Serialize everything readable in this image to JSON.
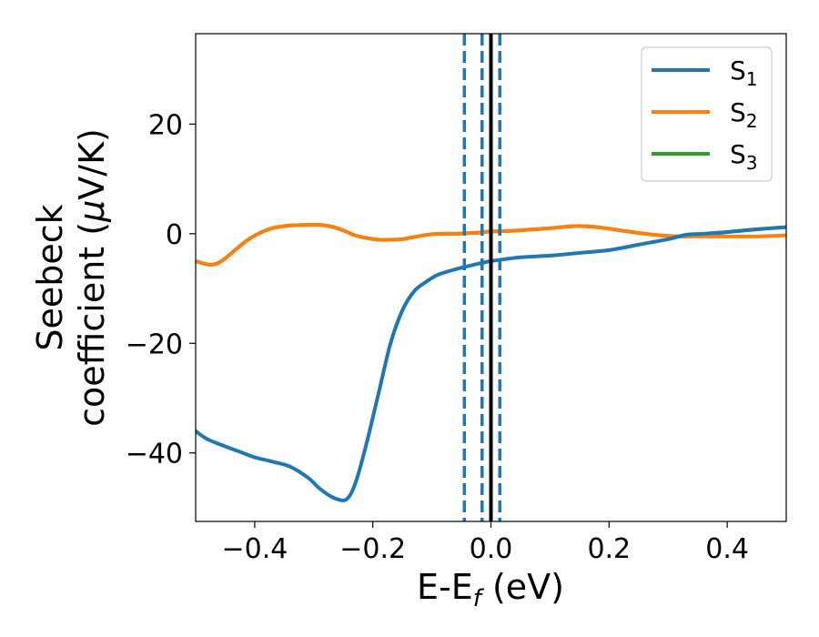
{
  "chart_data": {
    "type": "line",
    "xlabel": "E-E",
    "xlabel_sub": "f",
    "xlabel_unit": " (eV)",
    "ylabel_line1": "Seebeck",
    "ylabel_line2_prefix": "coefficient  (",
    "ylabel_mu": "μ",
    "ylabel_line2_suffix": "V/K)",
    "xlim": [
      -0.5,
      0.5
    ],
    "ylim": [
      -52.5,
      36.5
    ],
    "xticks": [
      -0.4,
      -0.2,
      0.0,
      0.2,
      0.4
    ],
    "xtick_labels": [
      "−0.4",
      "−0.2",
      "0.0",
      "0.2",
      "0.4"
    ],
    "yticks": [
      -40,
      -20,
      0,
      20
    ],
    "ytick_labels": [
      "−40",
      "−20",
      "0",
      "20"
    ],
    "grid": false,
    "legend_position": "top-right",
    "series": [
      {
        "name": "S",
        "subscript": "1",
        "color": "#1f77b4",
        "x": [
          -0.5,
          -0.48,
          -0.45,
          -0.42,
          -0.4,
          -0.37,
          -0.34,
          -0.31,
          -0.29,
          -0.27,
          -0.255,
          -0.245,
          -0.235,
          -0.225,
          -0.21,
          -0.19,
          -0.17,
          -0.15,
          -0.13,
          -0.11,
          -0.09,
          -0.07,
          -0.05,
          -0.03,
          -0.01,
          0.0,
          0.02,
          0.05,
          0.1,
          0.15,
          0.2,
          0.25,
          0.3,
          0.33,
          0.36,
          0.4,
          0.45,
          0.5
        ],
        "y": [
          -36,
          -37.5,
          -38.8,
          -40,
          -40.8,
          -41.6,
          -42.5,
          -44.5,
          -46.5,
          -48,
          -48.6,
          -48.5,
          -47,
          -44,
          -38,
          -29,
          -20,
          -14,
          -10.5,
          -8.8,
          -7.5,
          -6.8,
          -6.2,
          -5.7,
          -5.2,
          -5.0,
          -4.7,
          -4.3,
          -4.0,
          -3.5,
          -3.0,
          -2.0,
          -1.0,
          -0.2,
          0.0,
          0.3,
          0.8,
          1.2
        ]
      },
      {
        "name": "S",
        "subscript": "2",
        "color": "#ff7f0e",
        "x": [
          -0.5,
          -0.48,
          -0.465,
          -0.45,
          -0.43,
          -0.41,
          -0.39,
          -0.37,
          -0.34,
          -0.31,
          -0.29,
          -0.27,
          -0.25,
          -0.23,
          -0.21,
          -0.19,
          -0.17,
          -0.15,
          -0.13,
          -0.1,
          -0.08,
          -0.06,
          -0.04,
          -0.02,
          0.0,
          0.03,
          0.06,
          0.1,
          0.13,
          0.15,
          0.18,
          0.22,
          0.26,
          0.3,
          0.35,
          0.4,
          0.45,
          0.5
        ],
        "y": [
          -5.0,
          -5.6,
          -5.5,
          -4.5,
          -2.7,
          -1.0,
          0.2,
          1.0,
          1.5,
          1.6,
          1.6,
          1.3,
          0.6,
          -0.3,
          -0.8,
          -1.1,
          -1.1,
          -1.0,
          -0.6,
          -0.1,
          0.0,
          0.0,
          0.1,
          0.2,
          0.4,
          0.5,
          0.7,
          1.0,
          1.3,
          1.4,
          1.2,
          0.6,
          0.0,
          -0.4,
          -0.5,
          -0.5,
          -0.5,
          -0.3
        ]
      },
      {
        "name": "S",
        "subscript": "3",
        "color": "#2ca02c",
        "x": [
          -0.5,
          -0.48,
          -0.465,
          -0.45,
          -0.43,
          -0.41,
          -0.39,
          -0.37,
          -0.34,
          -0.31,
          -0.29,
          -0.27,
          -0.25,
          -0.23,
          -0.21,
          -0.19,
          -0.17,
          -0.15,
          -0.13,
          -0.1,
          -0.08,
          -0.06,
          -0.04,
          -0.02,
          0.0,
          0.03,
          0.06,
          0.1,
          0.13,
          0.15,
          0.18,
          0.22,
          0.26,
          0.3,
          0.33,
          0.36,
          0.4,
          0.45,
          0.5
        ],
        "y": [
          -5.0,
          -5.6,
          -5.5,
          -4.5,
          -2.7,
          -1.0,
          0.2,
          1.0,
          1.5,
          1.6,
          1.6,
          1.3,
          0.6,
          -0.3,
          -0.8,
          -1.1,
          -1.1,
          -1.0,
          -0.6,
          -0.1,
          0.0,
          0.0,
          0.1,
          0.2,
          0.4,
          0.5,
          0.7,
          1.0,
          1.3,
          1.4,
          1.2,
          0.6,
          0.0,
          -0.4,
          -0.5,
          -0.3,
          0.3,
          0.8,
          1.2
        ]
      }
    ],
    "vlines": [
      {
        "x": -0.045,
        "style": "dashed",
        "color": "#1f77b4"
      },
      {
        "x": -0.015,
        "style": "dashed",
        "color": "#1f77b4"
      },
      {
        "x": 0.0,
        "style": "solid",
        "color": "#000000"
      },
      {
        "x": 0.015,
        "style": "dashed",
        "color": "#1f77b4"
      }
    ]
  }
}
